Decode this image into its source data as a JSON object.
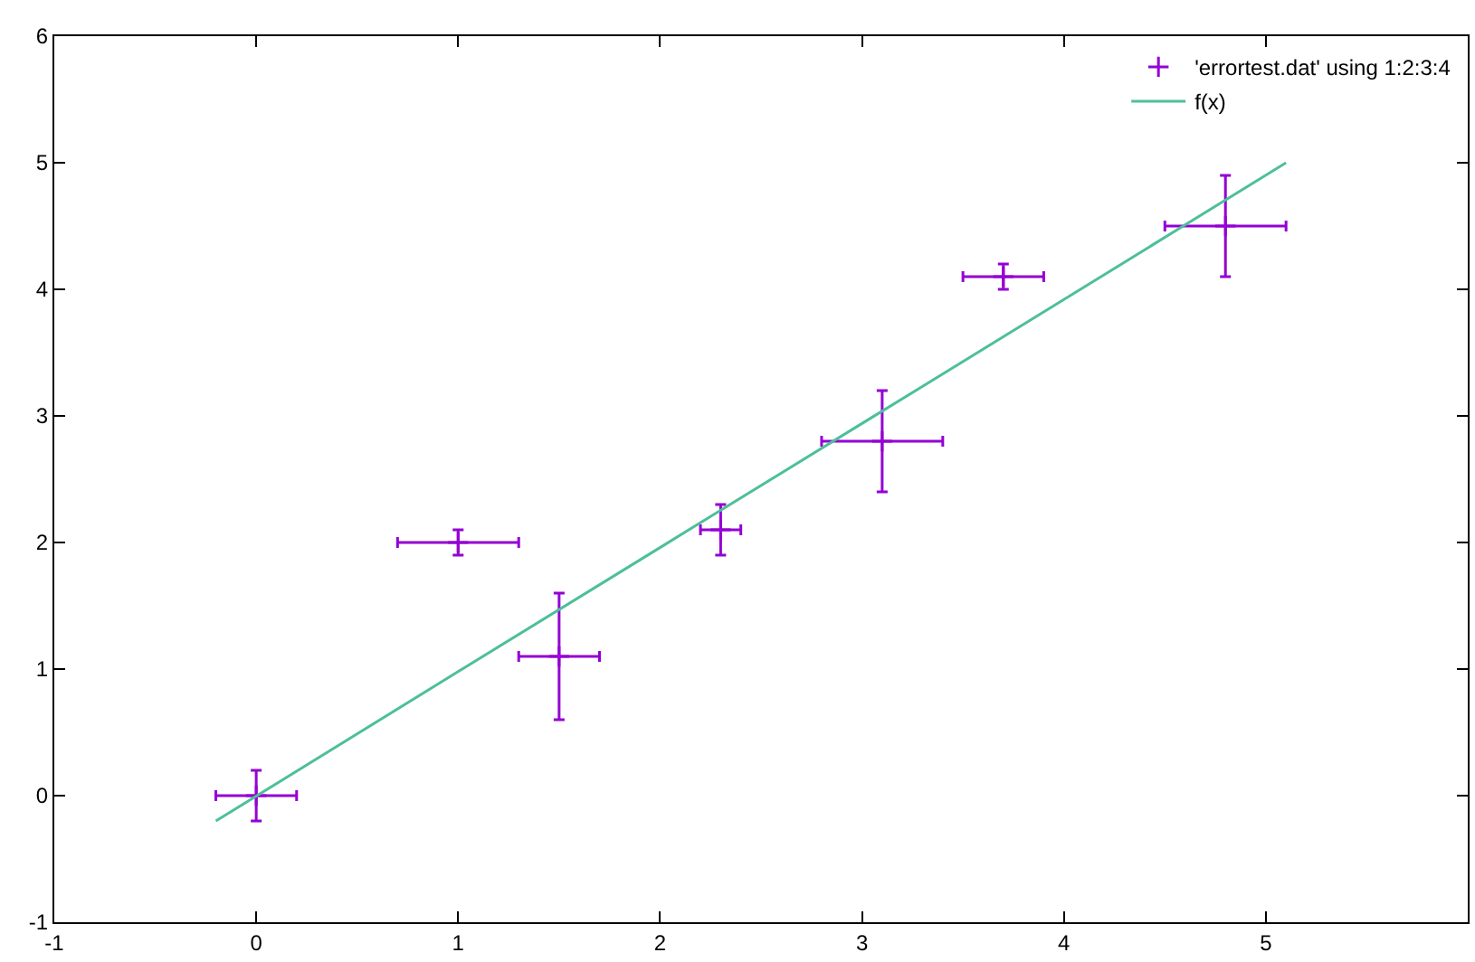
{
  "chart_data": {
    "type": "scatter",
    "xlim": [
      -1,
      6
    ],
    "xticks": [
      -1,
      0,
      1,
      2,
      3,
      4,
      5
    ],
    "ylim": [
      -1,
      6
    ],
    "yticks": [
      -1,
      0,
      1,
      2,
      3,
      4,
      5,
      6
    ],
    "legend": "top right",
    "series": [
      {
        "name": "'errortest.dat' using 1:2:3:4",
        "marker": "cross",
        "color": "#9400d3",
        "x": [
          0,
          1,
          1.5,
          2.3,
          3.1,
          3.7,
          4.8
        ],
        "values": [
          0,
          2,
          1.1,
          2.1,
          2.8,
          4.1,
          4.5
        ],
        "errors": [
          0.2,
          0.1,
          0.5,
          0.2,
          0.4,
          0.1,
          0.4
        ],
        "xerrors": [
          0.2,
          0.3,
          0.2,
          0.1,
          0.3,
          0.2,
          0.3
        ]
      },
      {
        "name": "f(x)",
        "type": "line",
        "marker": "none",
        "color": "#4dbf9a",
        "line_style": "solid",
        "x": [
          -0.2,
          1,
          2,
          3,
          4,
          5.1
        ],
        "values": [
          -0.2,
          0.98,
          1.96,
          2.94,
          3.92,
          5.0
        ]
      }
    ]
  }
}
